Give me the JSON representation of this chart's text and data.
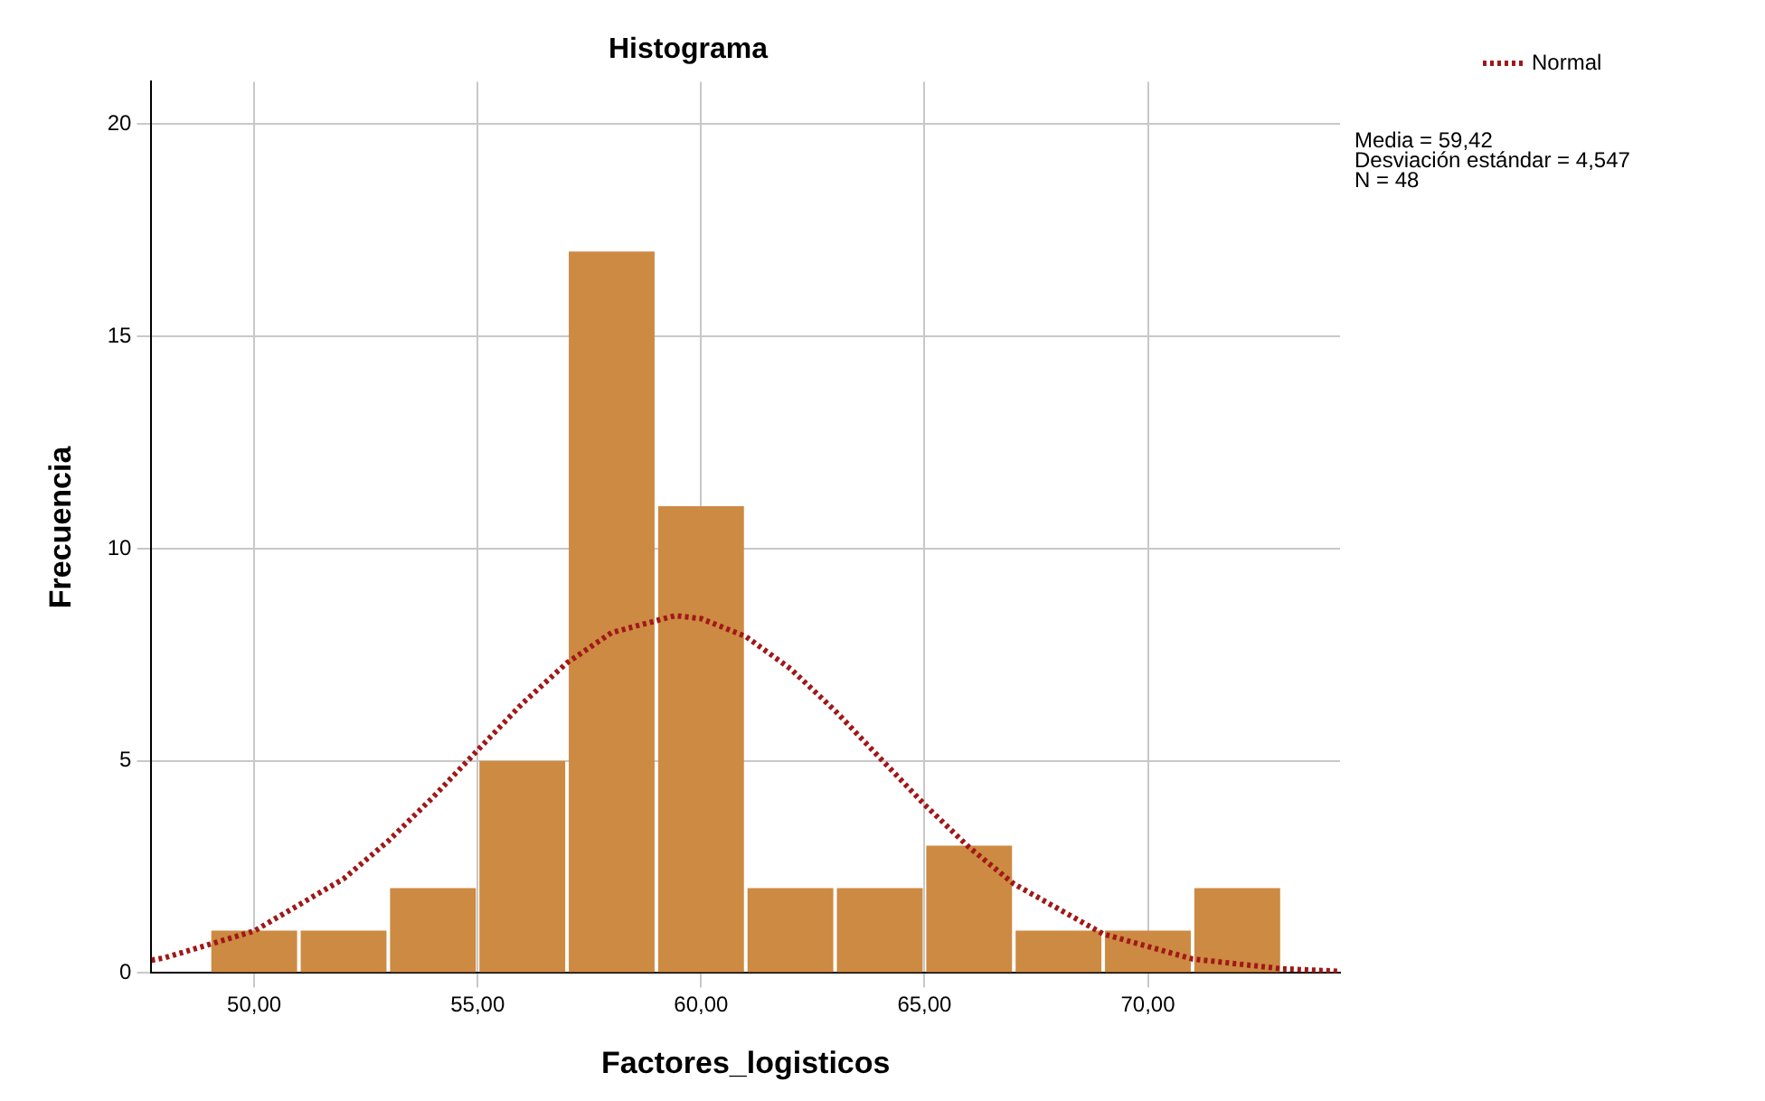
{
  "chart_data": {
    "type": "histogram",
    "title": "Histograma",
    "xlabel": "Factores_logisticos",
    "ylabel": "Frecuencia",
    "bins": [
      49,
      51,
      53,
      55,
      57,
      59,
      61,
      63,
      65,
      67,
      69,
      71,
      73
    ],
    "values": [
      1,
      1,
      2,
      5,
      17,
      11,
      2,
      2,
      3,
      1,
      1,
      2
    ],
    "color": "#cd8a42",
    "series": [
      {
        "name": "Normal",
        "type": "line",
        "color": "#a01818",
        "line_style": "dotted",
        "x": [
          47.7,
          48,
          50,
          52,
          53,
          54,
          55,
          56,
          57,
          58,
          59.42,
          60,
          61,
          62,
          63,
          64,
          65,
          66,
          67,
          69,
          71,
          73,
          74.3
        ],
        "values": [
          0.3,
          0.36,
          0.99,
          2.22,
          3.11,
          4.14,
          5.25,
          6.35,
          7.31,
          8.02,
          8.42,
          8.35,
          7.93,
          7.17,
          6.18,
          5.07,
          3.97,
          2.96,
          2.1,
          0.92,
          0.33,
          0.1,
          0.04
        ]
      }
    ],
    "xlim": [
      47.7,
      74.3
    ],
    "ylim": [
      0,
      21
    ],
    "xticks": [
      {
        "value": 50,
        "label": "50,00"
      },
      {
        "value": 55,
        "label": "55,00"
      },
      {
        "value": 60,
        "label": "60,00"
      },
      {
        "value": 65,
        "label": "65,00"
      },
      {
        "value": 70,
        "label": "70,00"
      }
    ],
    "yticks": [
      0,
      5,
      10,
      15,
      20
    ],
    "grid": true,
    "legend": "top right",
    "marker": "none",
    "annotations": [
      "Media = 59,42",
      "Desviación estándar = 4,547",
      "N = 48"
    ]
  }
}
